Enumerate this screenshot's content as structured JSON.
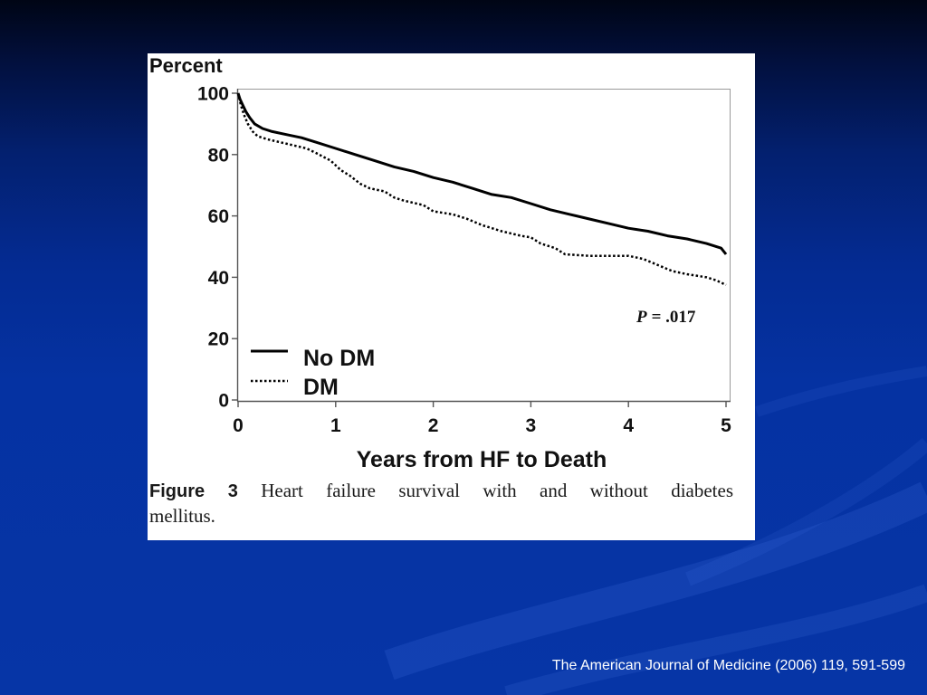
{
  "theme": {
    "background_top": "#000515",
    "background_bottom": "#0635a6",
    "panel": "#ffffff",
    "ink": "#000000",
    "footer_text": "#ffffff"
  },
  "chart_data": {
    "type": "line",
    "ylabel": "Percent",
    "xlabel": "Years from HF to Death",
    "xlim": [
      0,
      5
    ],
    "ylim": [
      0,
      100
    ],
    "xticks": [
      0,
      1,
      2,
      3,
      4,
      5
    ],
    "yticks": [
      0,
      20,
      40,
      60,
      80,
      100
    ],
    "grid": false,
    "legend_position": "bottom-left",
    "series": [
      {
        "name": "No DM",
        "line_style": "solid",
        "color": "#000000",
        "x": [
          0,
          0.02,
          0.05,
          0.08,
          0.12,
          0.17,
          0.25,
          0.35,
          0.5,
          0.65,
          0.8,
          1.0,
          1.2,
          1.4,
          1.6,
          1.8,
          2.0,
          2.2,
          2.4,
          2.6,
          2.8,
          3.0,
          3.2,
          3.4,
          3.6,
          3.8,
          4.0,
          4.2,
          4.4,
          4.6,
          4.8,
          4.95,
          5.0
        ],
        "y": [
          100,
          98,
          96,
          94,
          92,
          90,
          88.5,
          87.5,
          86.5,
          85.5,
          84,
          82,
          80,
          78,
          76,
          74.5,
          72.5,
          71,
          69,
          67,
          66,
          64,
          62,
          60.5,
          59,
          57.5,
          56,
          55,
          53.5,
          52.5,
          51,
          49.5,
          47.5
        ]
      },
      {
        "name": "DM",
        "line_style": "dotted",
        "color": "#000000",
        "x": [
          0,
          0.03,
          0.06,
          0.1,
          0.15,
          0.2,
          0.3,
          0.5,
          0.7,
          0.8,
          0.95,
          1.05,
          1.15,
          1.25,
          1.35,
          1.5,
          1.6,
          1.7,
          1.9,
          2.0,
          2.2,
          2.35,
          2.5,
          2.7,
          2.9,
          3.0,
          3.1,
          3.25,
          3.35,
          3.6,
          4.0,
          4.15,
          4.3,
          4.45,
          4.6,
          4.8,
          4.9,
          5.0
        ],
        "y": [
          100,
          96,
          93,
          90,
          87.5,
          86,
          85,
          83.5,
          82,
          80.5,
          78,
          75,
          73,
          70.5,
          69,
          68,
          66,
          65,
          63.5,
          61.5,
          60.5,
          59,
          57,
          55,
          53.5,
          53,
          51,
          49.5,
          47.5,
          47,
          47,
          46,
          44,
          42,
          41,
          40,
          39,
          37.5
        ]
      }
    ],
    "annotation": {
      "symbol": "P",
      "value": "= .017"
    }
  },
  "caption": {
    "label": "Figure 3",
    "line1": "Heart failure survival with and without diabetes",
    "line2": "mellitus."
  },
  "footer": {
    "citation": "The American Journal of Medicine (2006) 119, 591-599"
  }
}
